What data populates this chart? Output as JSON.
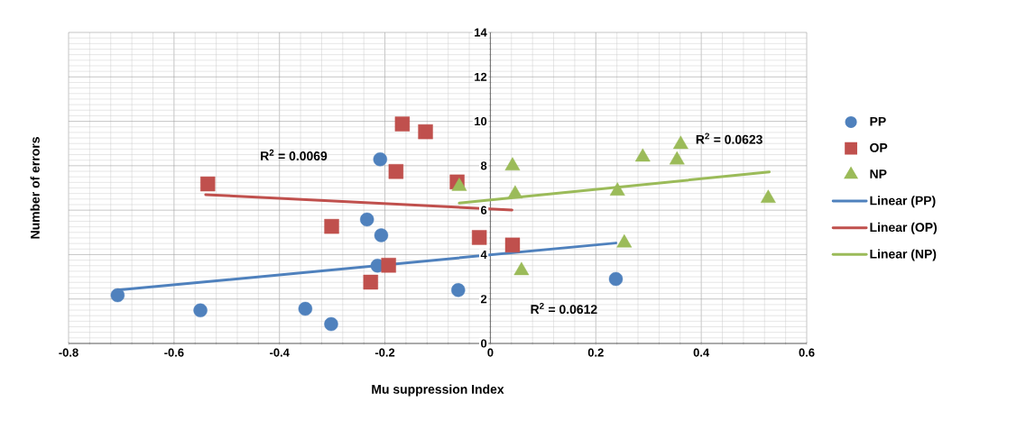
{
  "chart_data": {
    "type": "scatter",
    "xlabel": "Mu suppression Index",
    "ylabel": "Number of errors",
    "xlim": [
      -0.8,
      0.6
    ],
    "ylim": [
      0,
      14
    ],
    "xticks": [
      -0.8,
      -0.6,
      -0.4,
      -0.2,
      0,
      0.2,
      0.4,
      0.6
    ],
    "yticks": [
      0,
      2,
      4,
      6,
      8,
      10,
      12,
      14
    ],
    "grid": true,
    "legend": "right",
    "series": [
      {
        "name": "PP",
        "marker": "circle",
        "color": "#4f81bd",
        "x": [
          -0.707,
          -0.55,
          -0.351,
          -0.302,
          -0.234,
          -0.209,
          -0.207,
          -0.214,
          -0.061,
          0.238
        ],
        "values": [
          2.17,
          1.49,
          1.56,
          0.87,
          5.58,
          8.29,
          4.87,
          3.5,
          2.4,
          2.9
        ]
      },
      {
        "name": "OP",
        "marker": "square",
        "color": "#c0504d",
        "x": [
          -0.536,
          -0.301,
          -0.227,
          -0.193,
          -0.179,
          -0.167,
          -0.123,
          -0.063,
          -0.021,
          0.042
        ],
        "values": [
          7.18,
          5.27,
          2.76,
          3.52,
          7.74,
          9.88,
          9.53,
          7.27,
          4.77,
          4.43
        ]
      },
      {
        "name": "NP",
        "marker": "triangle",
        "color": "#9bbb59",
        "x": [
          -0.059,
          0.042,
          0.047,
          0.059,
          0.241,
          0.254,
          0.289,
          0.354,
          0.361,
          0.527
        ],
        "values": [
          7.07,
          7.99,
          6.73,
          3.28,
          6.86,
          4.52,
          8.39,
          8.26,
          8.96,
          6.53
        ]
      },
      {
        "name": "Linear (PP)",
        "type": "line",
        "line_style": "solid",
        "color": "#4f81bd",
        "x": [
          -0.707,
          0.238
        ],
        "values": [
          2.4,
          4.52
        ]
      },
      {
        "name": "Linear (OP)",
        "type": "line",
        "line_style": "solid",
        "color": "#c0504d",
        "x": [
          -0.54,
          0.041
        ],
        "values": [
          6.7,
          6.01
        ]
      },
      {
        "name": "Linear (NP)",
        "type": "line",
        "line_style": "solid",
        "color": "#9bbb59",
        "x": [
          -0.059,
          0.529
        ],
        "values": [
          6.32,
          7.72
        ]
      }
    ],
    "annotations": [
      "R$^{2}$ = 0.0069",
      "R$^{2}$ = 0.0612",
      "R$^{2}$ = 0.0623"
    ]
  }
}
